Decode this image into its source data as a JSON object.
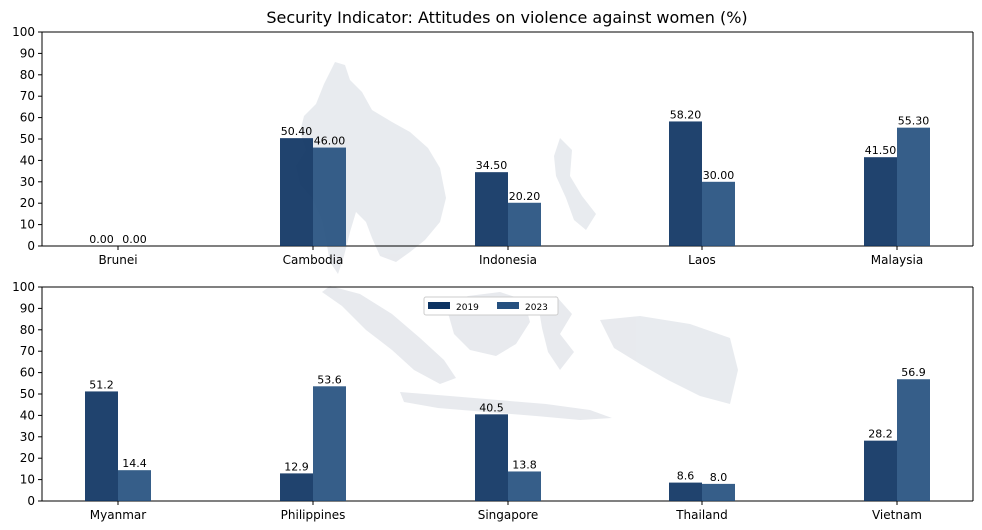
{
  "chart_data": {
    "type": "bar",
    "title": "Security Indicator: Attitudes on violence against women (%)",
    "ylim": [
      0,
      100
    ],
    "yticks": [
      "0",
      "10",
      "20",
      "30",
      "40",
      "50",
      "60",
      "70",
      "80",
      "90",
      "100"
    ],
    "legend": {
      "placement": "center",
      "entries": [
        "2019",
        "2023"
      ]
    },
    "colors": {
      "2019": "#0d3362",
      "2023": "#25507f"
    },
    "panels": [
      {
        "categories": [
          "Brunei",
          "Cambodia",
          "Indonesia",
          "Laos",
          "Malaysia"
        ],
        "series": [
          {
            "name": "2019",
            "values": [
              0.0,
              50.4,
              34.5,
              58.2,
              41.5
            ],
            "labels": [
              "0.00",
              "50.40",
              "34.50",
              "58.20",
              "41.50"
            ]
          },
          {
            "name": "2023",
            "values": [
              0.0,
              46.0,
              20.2,
              30.0,
              55.3
            ],
            "labels": [
              "0.00",
              "46.00",
              "20.20",
              "30.00",
              "55.30"
            ]
          }
        ]
      },
      {
        "categories": [
          "Myanmar",
          "Philippines",
          "Singapore",
          "Thailand",
          "Vietnam"
        ],
        "series": [
          {
            "name": "2019",
            "values": [
              51.2,
              12.9,
              40.5,
              8.6,
              28.2
            ],
            "labels": [
              "51.2",
              "12.9",
              "40.5",
              "8.6",
              "28.2"
            ]
          },
          {
            "name": "2023",
            "values": [
              14.4,
              53.6,
              13.8,
              8.0,
              56.9
            ],
            "labels": [
              "14.4",
              "53.6",
              "13.8",
              "8.0",
              "56.9"
            ]
          }
        ]
      }
    ]
  }
}
